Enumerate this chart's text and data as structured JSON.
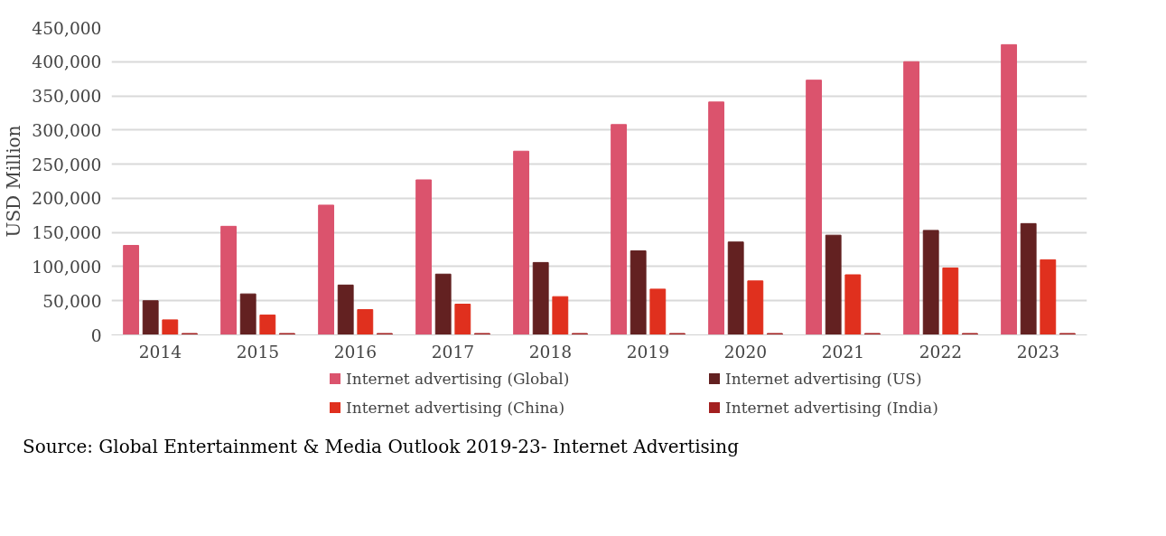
{
  "chart_data": {
    "type": "bar",
    "ylabel": "USD Million",
    "categories": [
      "2014",
      "2015",
      "2016",
      "2017",
      "2018",
      "2019",
      "2020",
      "2021",
      "2022",
      "2023"
    ],
    "series": [
      {
        "name": "Internet advertising (Global)",
        "color": "#db536d",
        "values": [
          131000,
          159000,
          190000,
          227000,
          269000,
          308000,
          341000,
          373000,
          400000,
          425000
        ]
      },
      {
        "name": "Internet advertising (US)",
        "color": "#632121",
        "values": [
          50000,
          60000,
          73000,
          89000,
          106000,
          123000,
          136000,
          146000,
          153000,
          163000
        ]
      },
      {
        "name": "Internet advertising (China)",
        "color": "#e0301e",
        "values": [
          22000,
          29000,
          37000,
          45000,
          56000,
          67000,
          79000,
          88000,
          98000,
          110000
        ]
      },
      {
        "name": "Internet advertising (India)",
        "color": "#a32020",
        "values": [
          2000,
          2000,
          2000,
          2000,
          2000,
          2000,
          2000,
          2000,
          2000,
          2000
        ]
      }
    ],
    "ylim": [
      0,
      450000
    ],
    "yticks": [
      {
        "value": 0,
        "label": "0"
      },
      {
        "value": 50000,
        "label": "50,000"
      },
      {
        "value": 100000,
        "label": "100,000"
      },
      {
        "value": 150000,
        "label": "150,000"
      },
      {
        "value": 200000,
        "label": "200,000"
      },
      {
        "value": 250000,
        "label": "250,000"
      },
      {
        "value": 300000,
        "label": "300,000"
      },
      {
        "value": 350000,
        "label": "350,000"
      },
      {
        "value": 400000,
        "label": "400,000"
      },
      {
        "value": 450000,
        "label": "450,000"
      }
    ],
    "grid": "y",
    "legend": "bottom",
    "annotations": [
      "Source: Global Entertainment & Media Outlook 2019-23- Internet Advertising"
    ]
  }
}
